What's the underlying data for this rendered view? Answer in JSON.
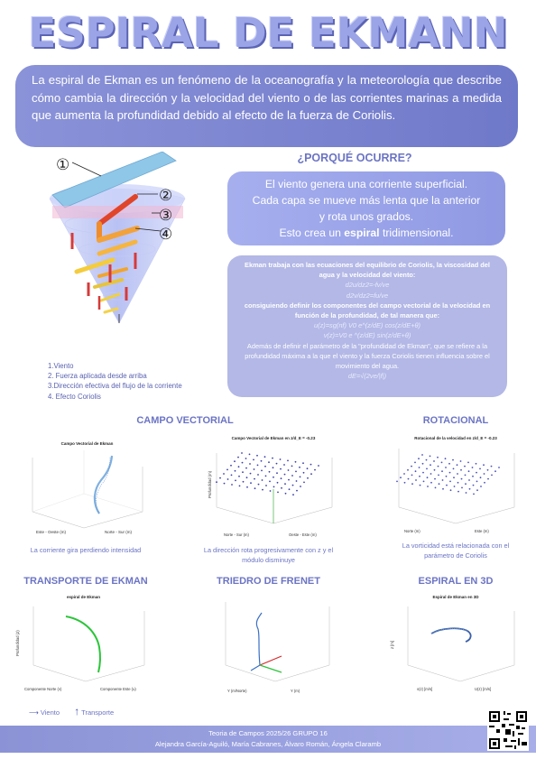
{
  "title": "ESPIRAL DE EKMANN",
  "intro": "La espiral de Ekman es un fenómeno de la oceanografía y la meteorología que describe cómo cambia la dirección y la velocidad del viento o de las corrientes marinas a medida que aumenta la profundidad debido al efecto de la fuerza de Coriolis.",
  "diagram": {
    "markers": [
      "①",
      "②",
      "③",
      "④"
    ],
    "legend": [
      "1.Viento",
      "2. Fuerza aplicada desde arriba",
      "3.Dirección efectiva del flujo de la corriente",
      "4. Efecto Coriolis"
    ]
  },
  "porque": {
    "title": "¿PORQUÉ OCURRE?",
    "line1": "El viento genera una corriente superficial.",
    "line2": "Cada capa se mueve más lenta que la anterior",
    "line3": "y rota unos grados.",
    "line4_pre": "Esto crea un ",
    "line4_bold": "espiral",
    "line4_post": " tridimensional."
  },
  "equations": {
    "p1": "Ekman trabaja con las ecuaciones del equilibrio de Coriolis, la viscosidad del agua y la velocidad del viento:",
    "eq1": "d2u/dz2=-fv/ve",
    "eq2": "d2v/dz2=fu/ve",
    "p2": "consiguiendo definir los componentes del campo vectorial de la velocidad en función de la profundidad, de tal manera que:",
    "eq3": "u(z)=sg(nf) V0 e^(z/dE) cos(z/dE+θ)",
    "eq4": "v(z)=V0 e ^(z/dE) sin(z/dE+θ)",
    "p3": "Además de definir el parámetro de la \"profundidad de Ekman\", que se refiere a la profundidad máxima a la que el viento y la fuerza Coriolis tienen influencia sobre el movimiento del agua.",
    "eq5": "dE=√(2ve/|f|)"
  },
  "sections": {
    "campo": "CAMPO VECTORIAL",
    "rotacional": "ROTACIONAL",
    "transporte": "TRANSPORTE DE EKMAN",
    "triedro": "TRIEDRO DE FRENET",
    "espiral3d": "ESPIRAL EN 3D"
  },
  "plots": {
    "p1_title": "Campo Vectorial de Ekman",
    "p2_title": "Campo Vectorial de Ekman en z/d_E = -0.23",
    "p3_title": "Rotacional de la velocidad en z/d_E = -0.23",
    "p4_title": "espiral de Ekman",
    "p6_title": "Espiral de Ekman en 3D",
    "p1_xlabel": "Este - Oeste (m)",
    "p1_ylabel": "Norte - Sur (m)",
    "p2_xlabel": "Norte - Sur (m)",
    "p2_ylabel": "Oeste - Este (m)",
    "p2_zlabel": "Profundidad (m)",
    "p3_xlabel": "Norte (m)",
    "p3_ylabel": "Este (m)",
    "p4_xlabel": "Componente Norte (v)",
    "p4_ylabel": "Componente Este (u)",
    "p4_zlabel": "Profundidad (z)",
    "p5_xlabel": "Y (m/Norte)",
    "p5_ylabel": "Y (m)",
    "p6_xlabel": "v(z) [m/s]",
    "p6_ylabel": "U(z) [m/s]",
    "p6_zlabel": "z [m]"
  },
  "captions": {
    "c1": "La corriente gira perdiendo intensidad",
    "c2": "La dirección rota progresivamente con z y el módulo disminuye",
    "c3": "La vorticidad está relacionada con el parámetro de Coriolis"
  },
  "legend_bottom": {
    "viento": "Viento",
    "transporte": "Transporte"
  },
  "footer": {
    "line1": "Teoria de Campos 2025/26  GRUPO 16",
    "line2": "Alejandra García-Aguiló, María Cabranes, Álvaro Román, Ángela Claramb"
  },
  "colors": {
    "accent": "#6b74c4",
    "title": "#9aa4e6",
    "box": "#7f88d2"
  }
}
